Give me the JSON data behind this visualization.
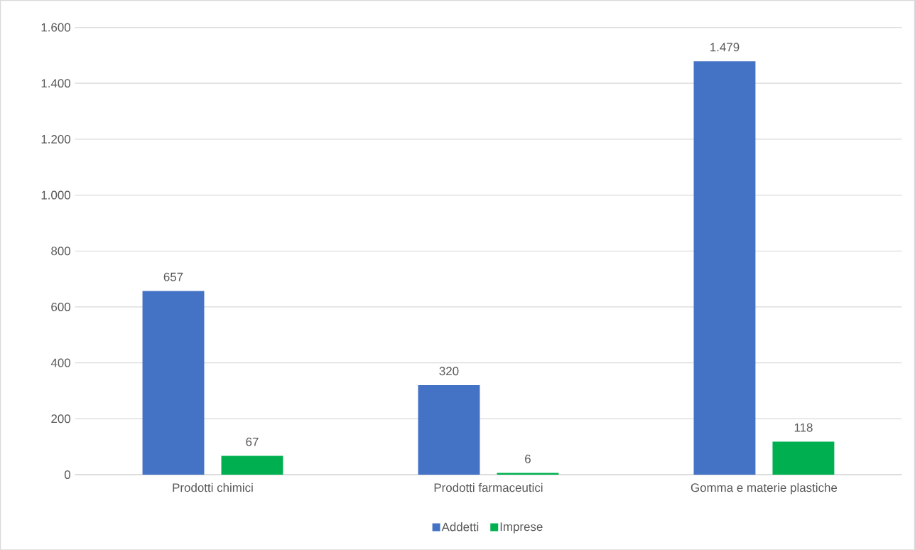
{
  "chart_data": {
    "type": "bar",
    "categories": [
      "Prodotti chimici",
      "Prodotti farmaceutici",
      "Gomma e materie plastiche"
    ],
    "series": [
      {
        "name": "Addetti",
        "color": "#4472c4",
        "values": [
          657,
          320,
          1479
        ],
        "value_labels": [
          "657",
          "320",
          "1.479"
        ]
      },
      {
        "name": "Imprese",
        "color": "#00b050",
        "values": [
          67,
          6,
          118
        ],
        "value_labels": [
          "67",
          "6",
          "118"
        ]
      }
    ],
    "ylim": [
      0,
      1600
    ],
    "yticks": [
      0,
      200,
      400,
      600,
      800,
      {
        "value": 1000,
        "label": "1.000"
      },
      {
        "value": 1200,
        "label": "1.200"
      },
      {
        "value": 1400,
        "label": "1.400"
      },
      {
        "value": 1600,
        "label": "1.600"
      }
    ],
    "grid": "y",
    "legend": "bottom"
  }
}
